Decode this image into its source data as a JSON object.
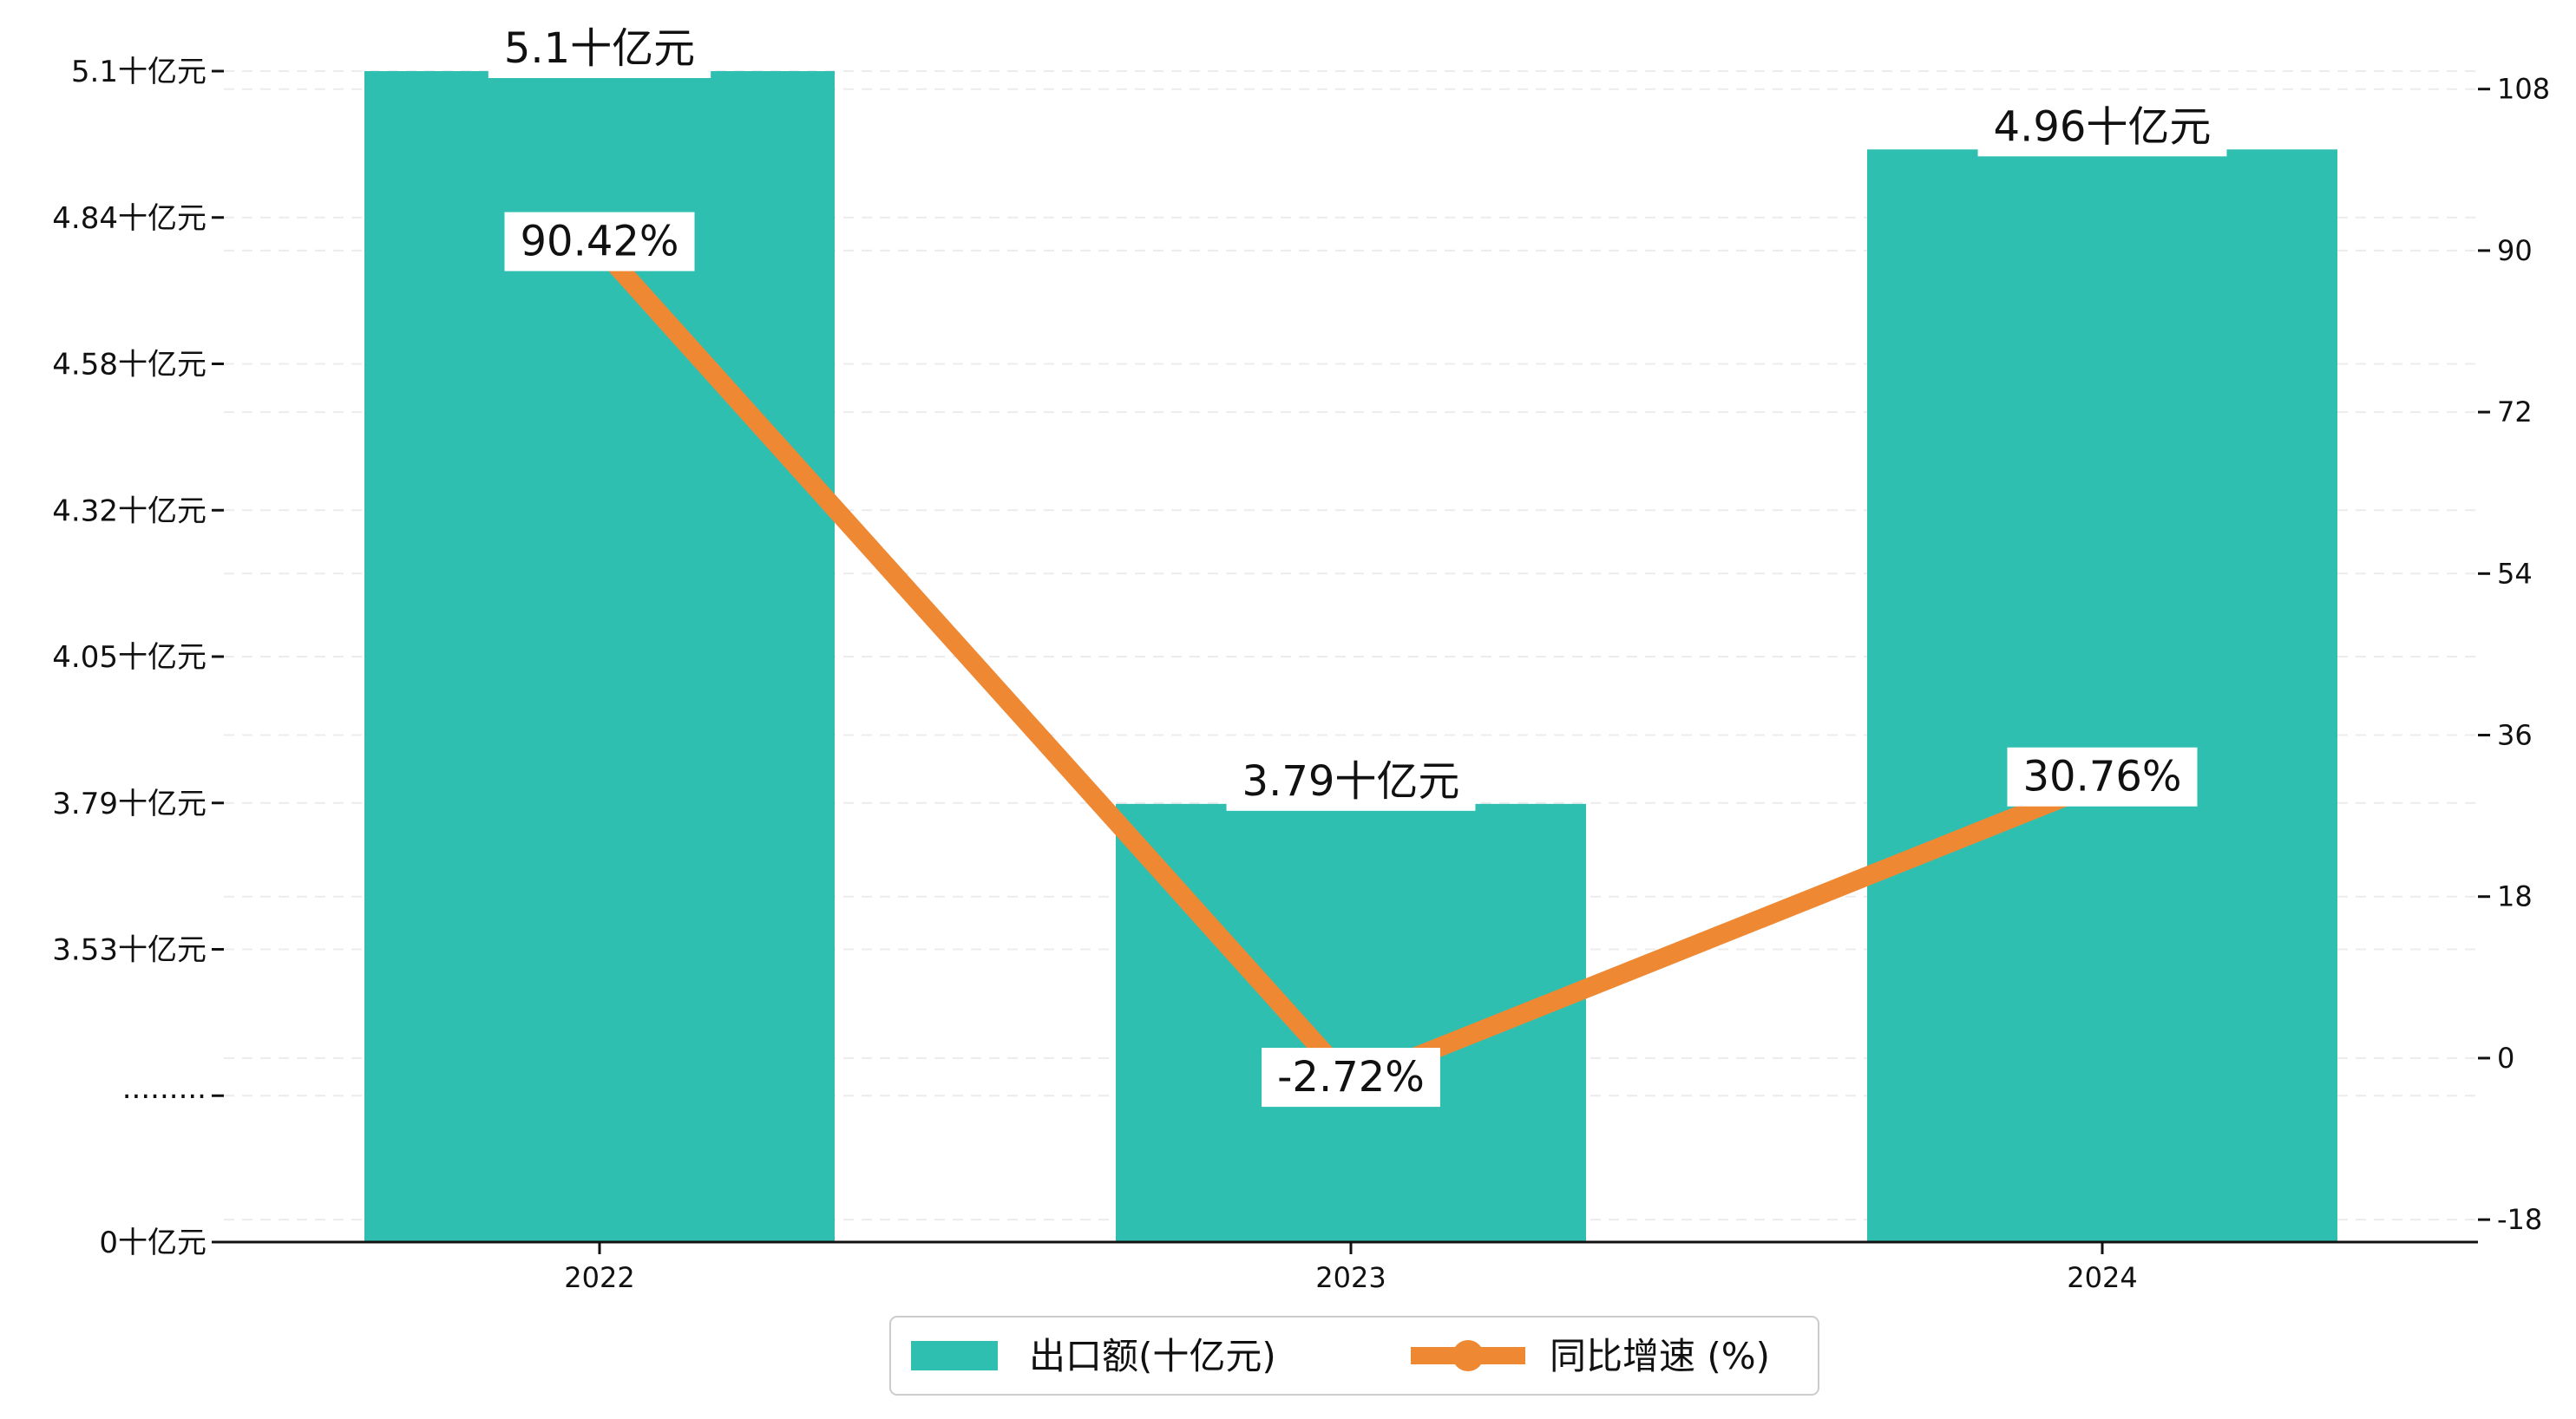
{
  "chart_data": {
    "type": "bar+line",
    "categories": [
      "2022",
      "2023",
      "2024"
    ],
    "series": [
      {
        "name": "出口额(十亿元)",
        "type": "bar",
        "axis": "left",
        "values": [
          5.1,
          3.79,
          4.96
        ],
        "labels": [
          "5.1十亿元",
          "3.79十亿元",
          "4.96十亿元"
        ],
        "color": "#2ebfb1"
      },
      {
        "name": "同比增速 (%)",
        "type": "line",
        "axis": "right",
        "values": [
          90.42,
          -2.72,
          30.76
        ],
        "labels": [
          "90.42%",
          "-2.72%",
          "30.76%"
        ],
        "color": "#ef8833"
      }
    ],
    "left_axis": {
      "ticks": [
        {
          "label": "0十亿元",
          "value": 0
        },
        {
          "label": "·········",
          "value": null
        },
        {
          "label": "3.53十亿元",
          "value": 3.53
        },
        {
          "label": "3.79十亿元",
          "value": 3.79
        },
        {
          "label": "4.05十亿元",
          "value": 4.05
        },
        {
          "label": "4.32十亿元",
          "value": 4.32
        },
        {
          "label": "4.58十亿元",
          "value": 4.58
        },
        {
          "label": "4.84十亿元",
          "value": 4.84
        },
        {
          "label": "5.1十亿元",
          "value": 5.1
        }
      ],
      "broken": true
    },
    "right_axis": {
      "ticks": [
        -18,
        0,
        18,
        36,
        54,
        72,
        90,
        108
      ],
      "ylim": [
        -20.5,
        110
      ]
    },
    "grid": true,
    "legend": "bottom-center"
  }
}
